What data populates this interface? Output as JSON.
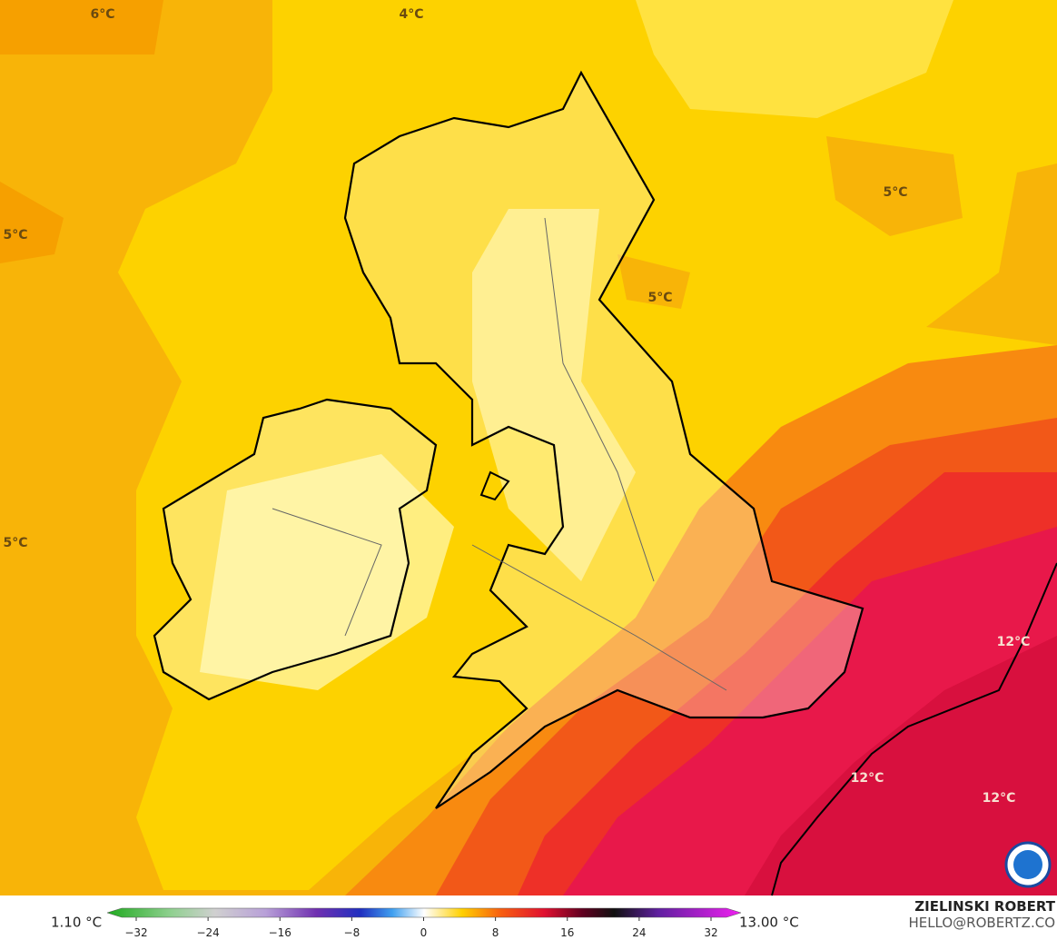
{
  "map": {
    "labels": [
      "6°C",
      "4°C",
      "5°C",
      "5°C",
      "5°C",
      "5°C",
      "12°C",
      "12°C",
      "12°C"
    ]
  },
  "colorbar": {
    "min_label": "1.10 °C",
    "max_label": "13.00 °C",
    "ticks": [
      "−32",
      "−24",
      "−16",
      "−8",
      "0",
      "8",
      "16",
      "24",
      "32"
    ]
  },
  "credit": {
    "name": "ZIELINSKI ROBERT",
    "email": "HELLO@ROBERTZ.CO"
  }
}
